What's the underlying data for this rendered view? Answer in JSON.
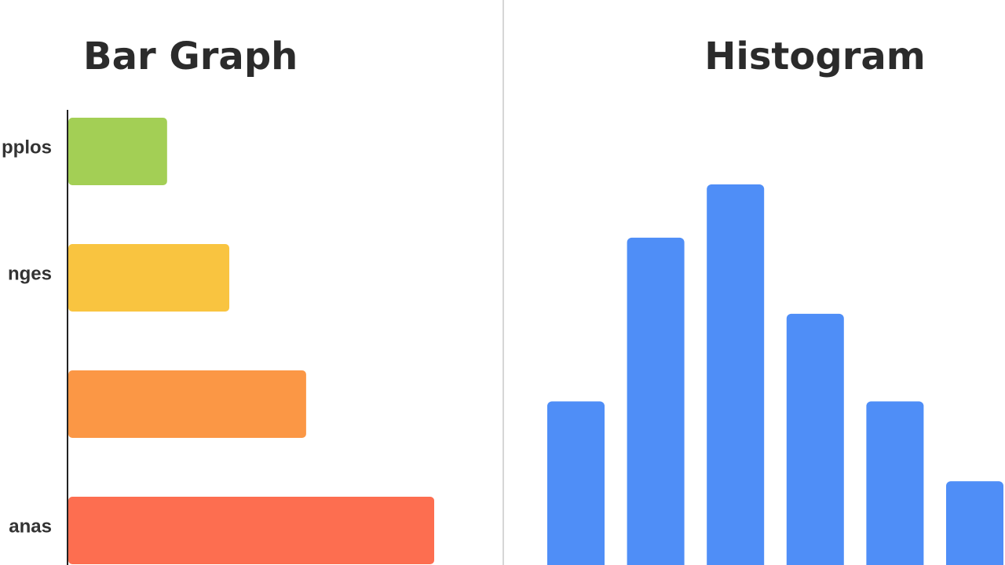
{
  "chart_data": [
    {
      "type": "hbar",
      "title": "Bar Graph",
      "categories": [
        "pplos",
        "nges",
        null,
        "anas"
      ],
      "values": [
        27,
        44,
        65,
        100
      ],
      "colors": [
        "#a3cf55",
        "#f9c440",
        "#fb9745",
        "#fd6e50"
      ]
    },
    {
      "type": "histogram",
      "title": "Histogram",
      "values": [
        43,
        86,
        100,
        66,
        43,
        22
      ],
      "color": "#4f8ef7"
    }
  ]
}
